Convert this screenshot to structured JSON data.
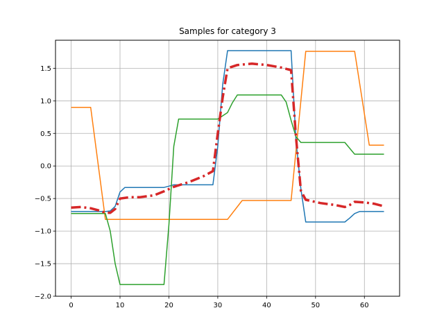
{
  "chart_data": {
    "type": "line",
    "title": "Samples for category 3",
    "xlabel": "",
    "ylabel": "",
    "xlim": [
      -3.2,
      67.2
    ],
    "ylim": [
      -2.0,
      1.93
    ],
    "grid": true,
    "x_ticks": [
      0,
      10,
      20,
      30,
      40,
      50,
      60
    ],
    "x_tick_labels": [
      "0",
      "10",
      "20",
      "30",
      "40",
      "50",
      "60"
    ],
    "y_ticks": [
      -2.0,
      -1.5,
      -1.0,
      -0.5,
      0.0,
      0.5,
      1.0,
      1.5
    ],
    "y_tick_labels": [
      "−2.0",
      "−1.5",
      "−1.0",
      "−0.5",
      "0.0",
      "0.5",
      "1.0",
      "1.5"
    ],
    "series": [
      {
        "color": "#1f77b4",
        "style": "solid",
        "width": 1.5,
        "points": [
          [
            0,
            -0.7
          ],
          [
            7,
            -0.7
          ],
          [
            8,
            -0.69
          ],
          [
            9,
            -0.62
          ],
          [
            10,
            -0.4
          ],
          [
            11,
            -0.33
          ],
          [
            19,
            -0.33
          ],
          [
            20,
            -0.31
          ],
          [
            21,
            -0.29
          ],
          [
            29,
            -0.29
          ],
          [
            30,
            0.3
          ],
          [
            31,
            1.25
          ],
          [
            32,
            1.77
          ],
          [
            45,
            1.77
          ],
          [
            46,
            0.4
          ],
          [
            47,
            -0.35
          ],
          [
            48,
            -0.86
          ],
          [
            56,
            -0.86
          ],
          [
            57,
            -0.8
          ],
          [
            58,
            -0.73
          ],
          [
            59,
            -0.7
          ],
          [
            64,
            -0.7
          ]
        ]
      },
      {
        "color": "#ff7f0e",
        "style": "solid",
        "width": 1.5,
        "points": [
          [
            0,
            0.9
          ],
          [
            4,
            0.9
          ],
          [
            7,
            -0.82
          ],
          [
            32,
            -0.82
          ],
          [
            35,
            -0.53
          ],
          [
            45,
            -0.53
          ],
          [
            48,
            1.76
          ],
          [
            58,
            1.76
          ],
          [
            61,
            0.32
          ],
          [
            64,
            0.32
          ]
        ]
      },
      {
        "color": "#2ca02c",
        "style": "solid",
        "width": 1.5,
        "points": [
          [
            0,
            -0.73
          ],
          [
            7,
            -0.73
          ],
          [
            8,
            -1.0
          ],
          [
            9,
            -1.5
          ],
          [
            10,
            -1.82
          ],
          [
            19,
            -1.82
          ],
          [
            20,
            -0.9
          ],
          [
            21,
            0.3
          ],
          [
            22,
            0.72
          ],
          [
            30,
            0.72
          ],
          [
            32,
            0.82
          ],
          [
            33,
            0.97
          ],
          [
            34,
            1.09
          ],
          [
            43,
            1.09
          ],
          [
            44,
            0.98
          ],
          [
            45,
            0.7
          ],
          [
            46,
            0.45
          ],
          [
            47,
            0.36
          ],
          [
            56,
            0.36
          ],
          [
            58,
            0.18
          ],
          [
            64,
            0.18
          ]
        ]
      },
      {
        "color": "#d62728",
        "style": "dashdot",
        "width": 3.5,
        "points": [
          [
            0,
            -0.64
          ],
          [
            2,
            -0.63
          ],
          [
            4,
            -0.65
          ],
          [
            6,
            -0.69
          ],
          [
            7,
            -0.72
          ],
          [
            8,
            -0.72
          ],
          [
            9,
            -0.66
          ],
          [
            10,
            -0.5
          ],
          [
            12,
            -0.48
          ],
          [
            14,
            -0.48
          ],
          [
            17,
            -0.45
          ],
          [
            19,
            -0.39
          ],
          [
            21,
            -0.32
          ],
          [
            24,
            -0.25
          ],
          [
            27,
            -0.16
          ],
          [
            29,
            -0.08
          ],
          [
            30,
            0.5
          ],
          [
            31,
            1.05
          ],
          [
            32,
            1.5
          ],
          [
            34,
            1.55
          ],
          [
            37,
            1.57
          ],
          [
            40,
            1.55
          ],
          [
            43,
            1.51
          ],
          [
            45,
            1.47
          ],
          [
            46,
            0.45
          ],
          [
            47,
            -0.38
          ],
          [
            48,
            -0.52
          ],
          [
            51,
            -0.57
          ],
          [
            54,
            -0.6
          ],
          [
            56,
            -0.63
          ],
          [
            57,
            -0.6
          ],
          [
            58,
            -0.55
          ],
          [
            60,
            -0.56
          ],
          [
            62,
            -0.58
          ],
          [
            64,
            -0.62
          ]
        ]
      }
    ]
  }
}
